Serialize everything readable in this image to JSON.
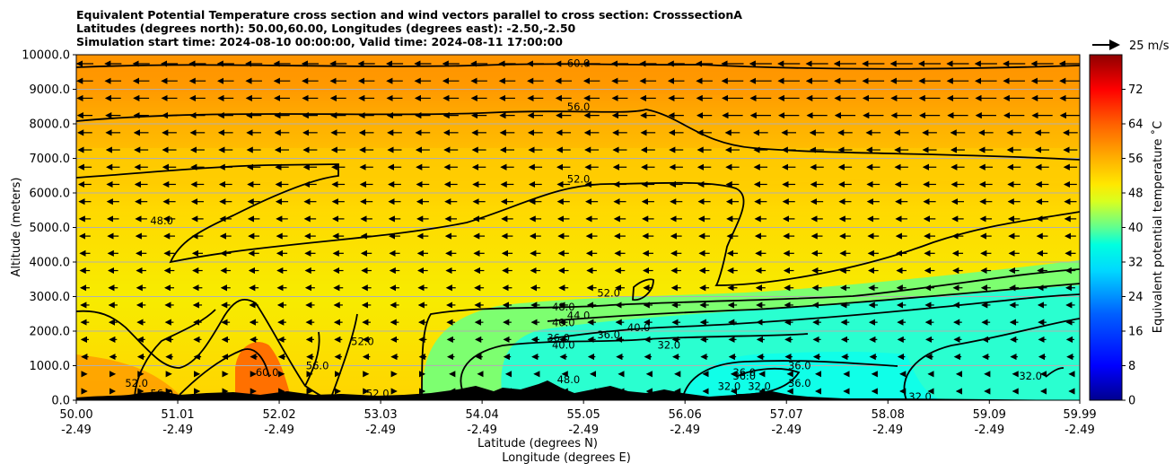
{
  "header": {
    "line1": "Equivalent Potential Temperature cross section and wind vectors parallel to cross section: CrosssectionA",
    "line2": "Latitudes (degrees north): 50.00,60.00, Longitudes (degrees east): -2.50,-2.50",
    "line3": "Simulation start time: 2024-08-10 00:00:00, Valid time: 2024-08-11 17:00:00"
  },
  "chart_data": {
    "type": "heatmap",
    "ylabel": "Altitude (meters)",
    "xlabel_lat": "Latitude (degrees N)",
    "xlabel_lon": "Longitude (degrees E)",
    "ylim": [
      0,
      10000
    ],
    "y_ticks": [
      "0.0",
      "1000.0",
      "2000.0",
      "3000.0",
      "4000.0",
      "5000.0",
      "6000.0",
      "7000.0",
      "8000.0",
      "9000.0",
      "10000.0"
    ],
    "x_ticks": [
      {
        "lat": "50.00",
        "lon": "-2.49"
      },
      {
        "lat": "51.01",
        "lon": "-2.49"
      },
      {
        "lat": "52.02",
        "lon": "-2.49"
      },
      {
        "lat": "53.03",
        "lon": "-2.49"
      },
      {
        "lat": "54.04",
        "lon": "-2.49"
      },
      {
        "lat": "55.05",
        "lon": "-2.49"
      },
      {
        "lat": "56.06",
        "lon": "-2.49"
      },
      {
        "lat": "57.07",
        "lon": "-2.49"
      },
      {
        "lat": "58.08",
        "lon": "-2.49"
      },
      {
        "lat": "59.09",
        "lon": "-2.49"
      },
      {
        "lat": "59.99",
        "lon": "-2.49"
      }
    ],
    "x_range": [
      50.0,
      59.99
    ],
    "grid": "horizontal",
    "colorbar": {
      "label": "Equivalent potential temperature ˚C",
      "range": [
        0,
        80
      ],
      "ticks": [
        "0",
        "8",
        "16",
        "24",
        "32",
        "40",
        "48",
        "56",
        "64",
        "72"
      ]
    },
    "wind_key": "25 m/s",
    "contour_labels": [
      {
        "text": "60.0",
        "lat": 55.0,
        "alt": 9750
      },
      {
        "text": "56.0",
        "lat": 55.0,
        "alt": 8500
      },
      {
        "text": "52.0",
        "lat": 55.0,
        "alt": 6400
      },
      {
        "text": "48.0",
        "lat": 50.85,
        "alt": 5200
      },
      {
        "text": "52.0",
        "lat": 55.3,
        "alt": 3100
      },
      {
        "text": "48.0",
        "lat": 54.85,
        "alt": 2700
      },
      {
        "text": "44.0",
        "lat": 55.0,
        "alt": 2450
      },
      {
        "text": "40.0",
        "lat": 54.85,
        "alt": 2250
      },
      {
        "text": "36.0",
        "lat": 54.8,
        "alt": 1800
      },
      {
        "text": "40.0",
        "lat": 54.85,
        "alt": 1600
      },
      {
        "text": "40.0",
        "lat": 55.6,
        "alt": 2100
      },
      {
        "text": "36.0",
        "lat": 55.3,
        "alt": 1900
      },
      {
        "text": "32.0",
        "lat": 55.9,
        "alt": 1600
      },
      {
        "text": "52.0",
        "lat": 52.85,
        "alt": 1700
      },
      {
        "text": "56.0",
        "lat": 52.4,
        "alt": 1000
      },
      {
        "text": "60.0",
        "lat": 51.9,
        "alt": 800
      },
      {
        "text": "52.0",
        "lat": 50.6,
        "alt": 500
      },
      {
        "text": "56.0",
        "lat": 50.85,
        "alt": 200
      },
      {
        "text": "52.0",
        "lat": 53.0,
        "alt": 200
      },
      {
        "text": "48.0",
        "lat": 54.9,
        "alt": 600
      },
      {
        "text": "36.0",
        "lat": 56.65,
        "alt": 800
      },
      {
        "text": "36.0",
        "lat": 56.65,
        "alt": 700
      },
      {
        "text": "32.0",
        "lat": 56.5,
        "alt": 400
      },
      {
        "text": "32.0",
        "lat": 56.8,
        "alt": 400
      },
      {
        "text": "36.0",
        "lat": 57.2,
        "alt": 500
      },
      {
        "text": "36.0",
        "lat": 57.2,
        "alt": 1000
      },
      {
        "text": "32.0",
        "lat": 58.4,
        "alt": 100
      },
      {
        "text": "32.0",
        "lat": 59.5,
        "alt": 700
      }
    ]
  }
}
